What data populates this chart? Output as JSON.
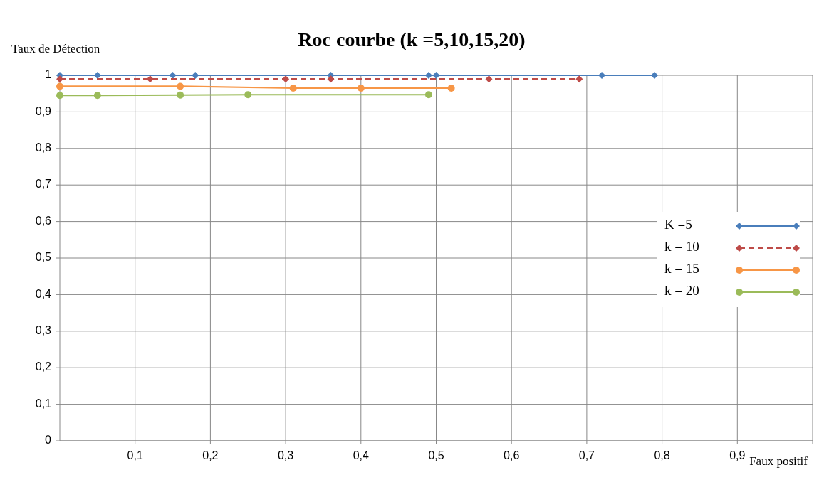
{
  "chart_data": {
    "type": "line",
    "title": "Roc courbe (k =5,10,15,20)",
    "ylabel": "Taux de Détection",
    "xlabel": "Faux positif",
    "xlim": [
      0,
      1
    ],
    "xticks": [
      {
        "value": 0.1,
        "label": "0,1"
      },
      {
        "value": 0.2,
        "label": "0,2"
      },
      {
        "value": 0.3,
        "label": "0,3"
      },
      {
        "value": 0.4,
        "label": "0,4"
      },
      {
        "value": 0.5,
        "label": "0,5"
      },
      {
        "value": 0.6,
        "label": "0,6"
      },
      {
        "value": 0.7,
        "label": "0,7"
      },
      {
        "value": 0.8,
        "label": "0,8"
      },
      {
        "value": 0.9,
        "label": "0,9"
      },
      {
        "value": 1,
        "label": null
      }
    ],
    "ylim": [
      0,
      1
    ],
    "yticks": [
      {
        "value": 0,
        "label": "0"
      },
      {
        "value": 0.1,
        "label": "0,1"
      },
      {
        "value": 0.2,
        "label": "0,2"
      },
      {
        "value": 0.3,
        "label": "0,3"
      },
      {
        "value": 0.4,
        "label": "0,4"
      },
      {
        "value": 0.5,
        "label": "0,5"
      },
      {
        "value": 0.6,
        "label": "0,6"
      },
      {
        "value": 0.7,
        "label": "0,7"
      },
      {
        "value": 0.8,
        "label": "0,8"
      },
      {
        "value": 0.9,
        "label": "0,9"
      },
      {
        "value": 1,
        "label": "1"
      }
    ],
    "grid": true,
    "legend": "right",
    "series": [
      {
        "name": "K =5",
        "color": "#4a7ebb",
        "marker": "diamond",
        "line_style": "solid",
        "x": [
          0,
          0.05,
          0.15,
          0.18,
          0.36,
          0.49,
          0.5,
          0.72,
          0.79
        ],
        "values": [
          1,
          1,
          1,
          1,
          1,
          1,
          1,
          1,
          1
        ]
      },
      {
        "name": "k = 10",
        "color": "#be4b48",
        "marker": "diamond",
        "line_style": "dashed",
        "x": [
          0,
          0.12,
          0.3,
          0.36,
          0.57,
          0.69
        ],
        "values": [
          0.99,
          0.99,
          0.99,
          0.99,
          0.99,
          0.99
        ]
      },
      {
        "name": "k = 15",
        "color": "#f79646",
        "marker": "circle",
        "line_style": "solid",
        "x": [
          0,
          0.16,
          0.31,
          0.4,
          0.52
        ],
        "values": [
          0.97,
          0.97,
          0.965,
          0.965,
          0.965
        ]
      },
      {
        "name": "k = 20",
        "color": "#9bbb59",
        "marker": "circle",
        "line_style": "solid",
        "x": [
          0,
          0.05,
          0.16,
          0.25,
          0.49
        ],
        "values": [
          0.945,
          0.945,
          0.946,
          0.947,
          0.947
        ]
      }
    ]
  }
}
